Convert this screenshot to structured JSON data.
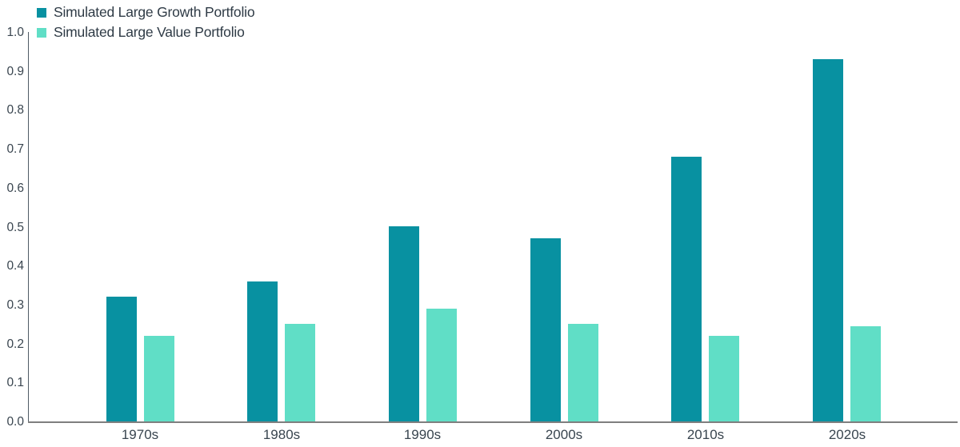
{
  "chart_data": {
    "type": "bar",
    "title": "",
    "xlabel": "",
    "ylabel": "",
    "categories": [
      "1970s",
      "1980s",
      "1990s",
      "2000s",
      "2010s",
      "2020s"
    ],
    "series": [
      {
        "name": "Simulated Large Growth Portfolio",
        "color": "#0891A1",
        "values": [
          0.32,
          0.36,
          0.5,
          0.47,
          0.68,
          0.93
        ]
      },
      {
        "name": "Simulated Large Value Portfolio",
        "color": "#60DEC6",
        "values": [
          0.22,
          0.25,
          0.29,
          0.25,
          0.22,
          0.245
        ]
      }
    ],
    "ylim": [
      0,
      1.0
    ],
    "y_ticks": [
      "0.0",
      "0.1",
      "0.2",
      "0.3",
      "0.4",
      "0.5",
      "0.6",
      "0.7",
      "0.8",
      "0.9",
      "1.0"
    ],
    "grid": false,
    "legend_position": "top-left"
  },
  "legend": {
    "items": [
      {
        "label": "Simulated Large Growth Portfolio",
        "color": "#0891A1"
      },
      {
        "label": "Simulated Large Value Portfolio",
        "color": "#60DEC6"
      }
    ]
  },
  "colors": {
    "growth_bar": "#0891A1",
    "value_bar": "#60DEC6",
    "axis_text": "#39454f",
    "baseline": "#7f7f7f",
    "y_axis_line": "#505b65"
  }
}
